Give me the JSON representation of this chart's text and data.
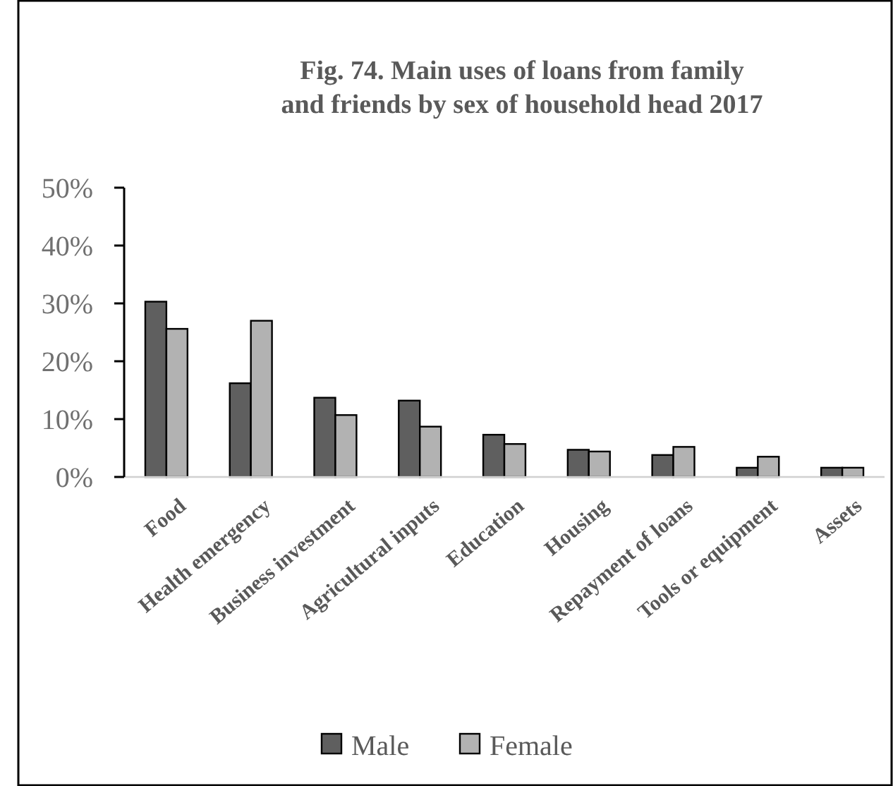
{
  "chart_data": {
    "type": "bar",
    "title": "Fig. 74. Main uses of loans from family and friends by sex of household head 2017",
    "categories": [
      "Food",
      "Health emergency",
      "Business investment",
      "Agricultural inputs",
      "Education",
      "Housing",
      "Repayment of loans",
      "Tools or equipment",
      "Assets"
    ],
    "series": [
      {
        "name": "Male",
        "color": "#5f5f5f",
        "values": [
          30.3,
          16.2,
          13.7,
          13.2,
          7.3,
          4.7,
          3.8,
          1.6,
          1.6
        ]
      },
      {
        "name": "Female",
        "color": "#b2b2b2",
        "values": [
          25.6,
          27.0,
          10.7,
          8.7,
          5.7,
          4.4,
          5.2,
          3.5,
          1.6
        ]
      }
    ],
    "ylim": [
      0,
      50
    ],
    "yticks": [
      {
        "value": 0,
        "label": "0%"
      },
      {
        "value": 10,
        "label": "10%"
      },
      {
        "value": 20,
        "label": "20%"
      },
      {
        "value": 30,
        "label": "30%"
      },
      {
        "value": 40,
        "label": "40%"
      },
      {
        "value": 50,
        "label": "50%"
      }
    ],
    "legend": "bottom",
    "grid": false
  }
}
